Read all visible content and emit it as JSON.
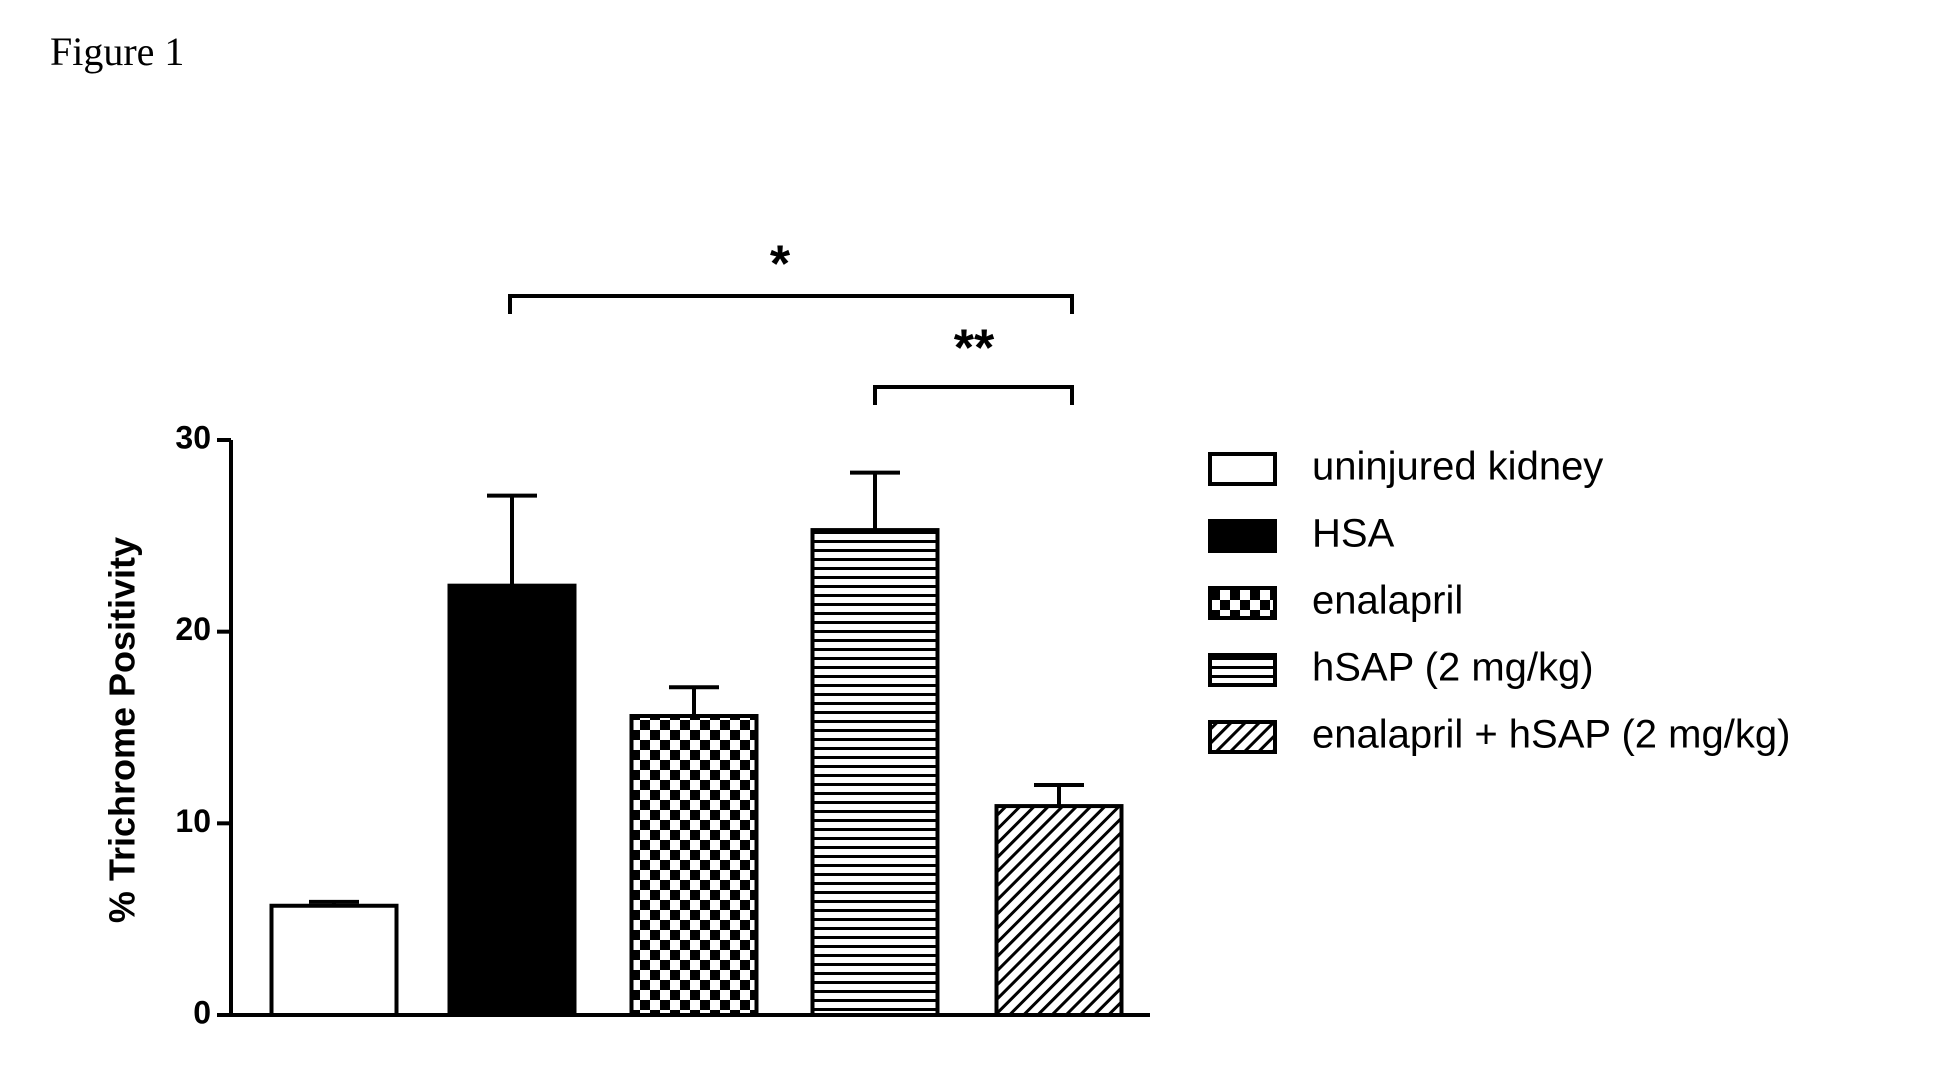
{
  "figure_label": "Figure 1",
  "chart_data": {
    "type": "bar",
    "ylabel": "% Trichrome Positivity",
    "categories": [
      "uninjured kidney",
      "HSA",
      "enalapril",
      "hSAP (2 mg/kg)",
      "enalapril + hSAP (2 mg/kg)"
    ],
    "values": [
      5.7,
      22.4,
      15.6,
      25.3,
      10.9
    ],
    "errors": [
      0.2,
      4.7,
      1.5,
      3.0,
      1.1
    ],
    "fills": [
      "white",
      "black",
      "checker",
      "hlines",
      "hatch"
    ],
    "ylim": [
      0,
      30
    ],
    "yticks": [
      0,
      10,
      20,
      30
    ],
    "annotations": [
      {
        "text": "*"
      },
      {
        "text": "**"
      }
    ]
  }
}
